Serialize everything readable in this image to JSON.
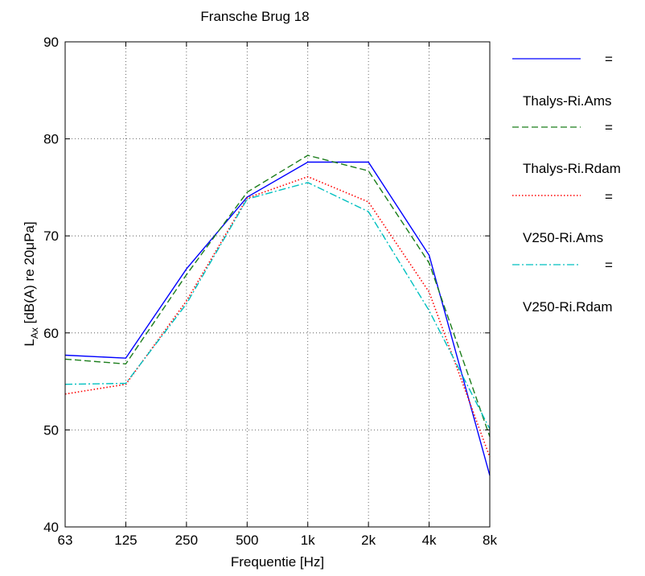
{
  "chart_data": {
    "type": "line",
    "title": "Fransche Brug 18",
    "xlabel": "Frequentie [Hz]",
    "ylabel": {
      "main": "L",
      "sub": "Ax",
      "rest": " [dB(A) re 20μPa]"
    },
    "categories": [
      "63",
      "125",
      "250",
      "500",
      "1k",
      "2k",
      "4k",
      "8k"
    ],
    "yticks": [
      40,
      50,
      60,
      70,
      80,
      90
    ],
    "ylim": [
      40,
      90
    ],
    "grid": true,
    "legend_position": "right-outside",
    "series": [
      {
        "name": "=",
        "color": "#0000ff",
        "dash": "solid",
        "values": [
          57.7,
          57.4,
          66.6,
          74.0,
          77.6,
          77.6,
          68.0,
          45.3
        ]
      },
      {
        "name": "Thalys-Ri.Ams =",
        "color": "#1b7d1b",
        "dash": "dashed",
        "values": [
          57.3,
          56.8,
          66.0,
          74.5,
          78.3,
          76.7,
          67.2,
          49.3
        ]
      },
      {
        "name": "Thalys-Ri.Rdam =",
        "color": "#ff0000",
        "dash": "dotted",
        "values": [
          53.7,
          54.7,
          63.3,
          73.9,
          76.1,
          73.5,
          64.2,
          47.2
        ]
      },
      {
        "name": "V250-Ri.Ams =",
        "color": "#00c0c0",
        "dash": "dashdot",
        "values": [
          54.7,
          54.8,
          63.0,
          73.8,
          75.5,
          72.5,
          62.3,
          50.1
        ]
      }
    ],
    "legend_text": [
      "=",
      "Thalys-Ri.Ams",
      "=",
      "Thalys-Ri.Rdam",
      "=",
      "V250-Ri.Ams",
      "=",
      "V250-Ri.Rdam"
    ]
  }
}
